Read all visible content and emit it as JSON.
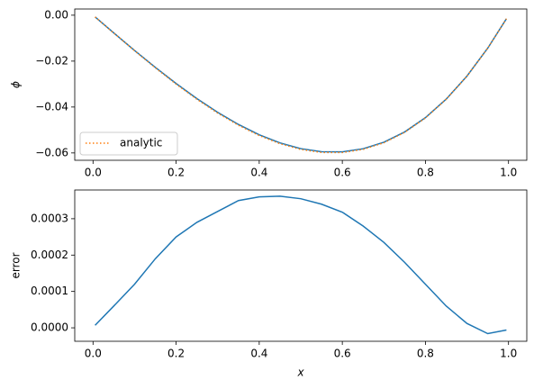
{
  "chart_data": [
    {
      "type": "line",
      "ylabel": "ϕ",
      "x": [
        0.005,
        0.05,
        0.1,
        0.15,
        0.2,
        0.25,
        0.3,
        0.35,
        0.4,
        0.45,
        0.5,
        0.55,
        0.6,
        0.65,
        0.7,
        0.75,
        0.8,
        0.85,
        0.9,
        0.95,
        0.995
      ],
      "series": [
        {
          "color": "#1f77b4",
          "style": "solid",
          "values": [
            -0.00077,
            -0.00773,
            -0.01535,
            -0.02273,
            -0.02976,
            -0.03633,
            -0.04232,
            -0.0476,
            -0.05208,
            -0.05563,
            -0.05813,
            -0.05946,
            -0.05952,
            -0.05818,
            -0.05534,
            -0.05086,
            -0.04464,
            -0.03656,
            -0.02651,
            -0.01436,
            -0.00154
          ]
        },
        {
          "name": "analytic",
          "color": "#ff7f0e",
          "style": "dotted",
          "values": [
            -0.00078,
            -0.00779,
            -0.01547,
            -0.02292,
            -0.03001,
            -0.03662,
            -0.04264,
            -0.04795,
            -0.05244,
            -0.05599,
            -0.05849,
            -0.0598,
            -0.05984,
            -0.05846,
            -0.05557,
            -0.05104,
            -0.04476,
            -0.03662,
            -0.02652,
            -0.01434,
            -0.00153
          ]
        }
      ],
      "xlim": [
        -0.044,
        1.044
      ],
      "ylim": [
        -0.0632,
        0.0027
      ],
      "xticks": [
        {
          "value": 0,
          "label": "0.0"
        },
        {
          "value": 0.2,
          "label": "0.2"
        },
        {
          "value": 0.4,
          "label": "0.4"
        },
        {
          "value": 0.6,
          "label": "0.6"
        },
        {
          "value": 0.8,
          "label": "0.8"
        },
        {
          "value": 1,
          "label": "1.0"
        }
      ],
      "yticks": [
        {
          "value": 0,
          "label": "0.00"
        },
        {
          "value": -0.02,
          "label": "−0.02"
        },
        {
          "value": -0.04,
          "label": "−0.04"
        },
        {
          "value": -0.06,
          "label": "−0.06"
        }
      ],
      "legend": "lower left"
    },
    {
      "type": "line",
      "ylabel": "error",
      "xlabel": "x",
      "x": [
        0.005,
        0.05,
        0.1,
        0.15,
        0.2,
        0.25,
        0.3,
        0.35,
        0.4,
        0.45,
        0.5,
        0.55,
        0.6,
        0.65,
        0.7,
        0.75,
        0.8,
        0.85,
        0.9,
        0.95,
        0.995
      ],
      "series": [
        {
          "color": "#1f77b4",
          "style": "solid",
          "values": [
            7e-06,
            6e-05,
            0.00012,
            0.00019,
            0.00025,
            0.00029,
            0.00032,
            0.00035,
            0.00036,
            0.000362,
            0.000355,
            0.00034,
            0.000318,
            0.00028,
            0.000235,
            0.00018,
            0.00012,
            6e-05,
            1.2e-05,
            -1.6e-05,
            -6e-06
          ]
        }
      ],
      "xlim": [
        -0.044,
        1.044
      ],
      "ylim": [
        -3.7e-05,
        0.000379
      ],
      "xticks": [
        {
          "value": 0,
          "label": "0.0"
        },
        {
          "value": 0.2,
          "label": "0.2"
        },
        {
          "value": 0.4,
          "label": "0.4"
        },
        {
          "value": 0.6,
          "label": "0.6"
        },
        {
          "value": 0.8,
          "label": "0.8"
        },
        {
          "value": 1,
          "label": "1.0"
        }
      ],
      "yticks": [
        {
          "value": 0,
          "label": "0.0000"
        },
        {
          "value": 0.0001,
          "label": "0.0001"
        },
        {
          "value": 0.0002,
          "label": "0.0002"
        },
        {
          "value": 0.0003,
          "label": "0.0003"
        }
      ]
    }
  ]
}
